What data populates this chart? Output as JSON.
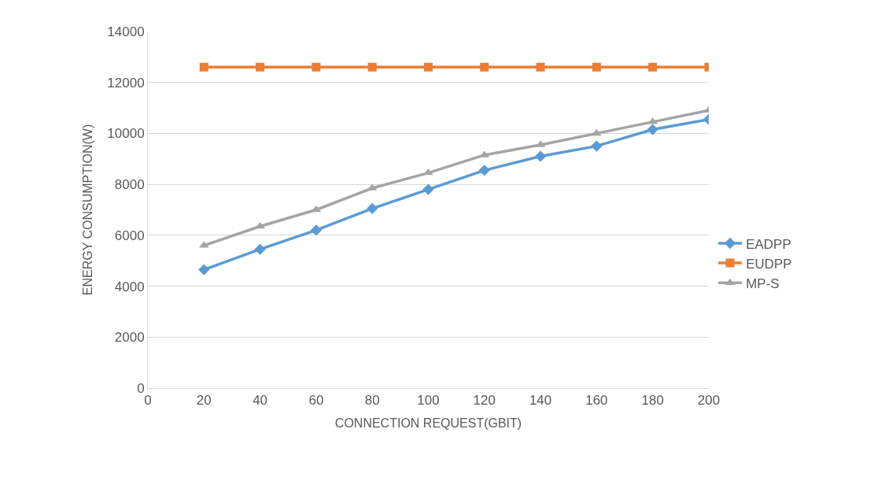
{
  "chart_data": {
    "type": "line",
    "xlabel": "CONNECTION REQUEST(GBIT)",
    "ylabel": "ENERGY CONSUMPTION(W)",
    "x": [
      20,
      40,
      60,
      80,
      100,
      120,
      140,
      160,
      180,
      200
    ],
    "series": [
      {
        "name": "EADPP",
        "color": "#5b9bd5",
        "marker": "diamond",
        "values": [
          4650,
          5450,
          6200,
          7050,
          7800,
          8550,
          9100,
          9500,
          10150,
          10550
        ]
      },
      {
        "name": "EUDPP",
        "color": "#ed7d31",
        "marker": "square",
        "values": [
          12600,
          12600,
          12600,
          12600,
          12600,
          12600,
          12600,
          12600,
          12600,
          12600
        ]
      },
      {
        "name": "MP-S",
        "color": "#a5a5a5",
        "marker": "triangle",
        "values": [
          5600,
          6350,
          7000,
          7850,
          8450,
          9150,
          9550,
          10000,
          10450,
          10900
        ]
      }
    ],
    "xlim": [
      0,
      200
    ],
    "xticks": [
      0,
      20,
      40,
      60,
      80,
      100,
      120,
      140,
      160,
      180,
      200
    ],
    "ylim": [
      0,
      14000
    ],
    "yticks": [
      0,
      2000,
      4000,
      6000,
      8000,
      10000,
      12000,
      14000
    ],
    "grid": "y",
    "legend": "right",
    "line_style": "solid"
  }
}
